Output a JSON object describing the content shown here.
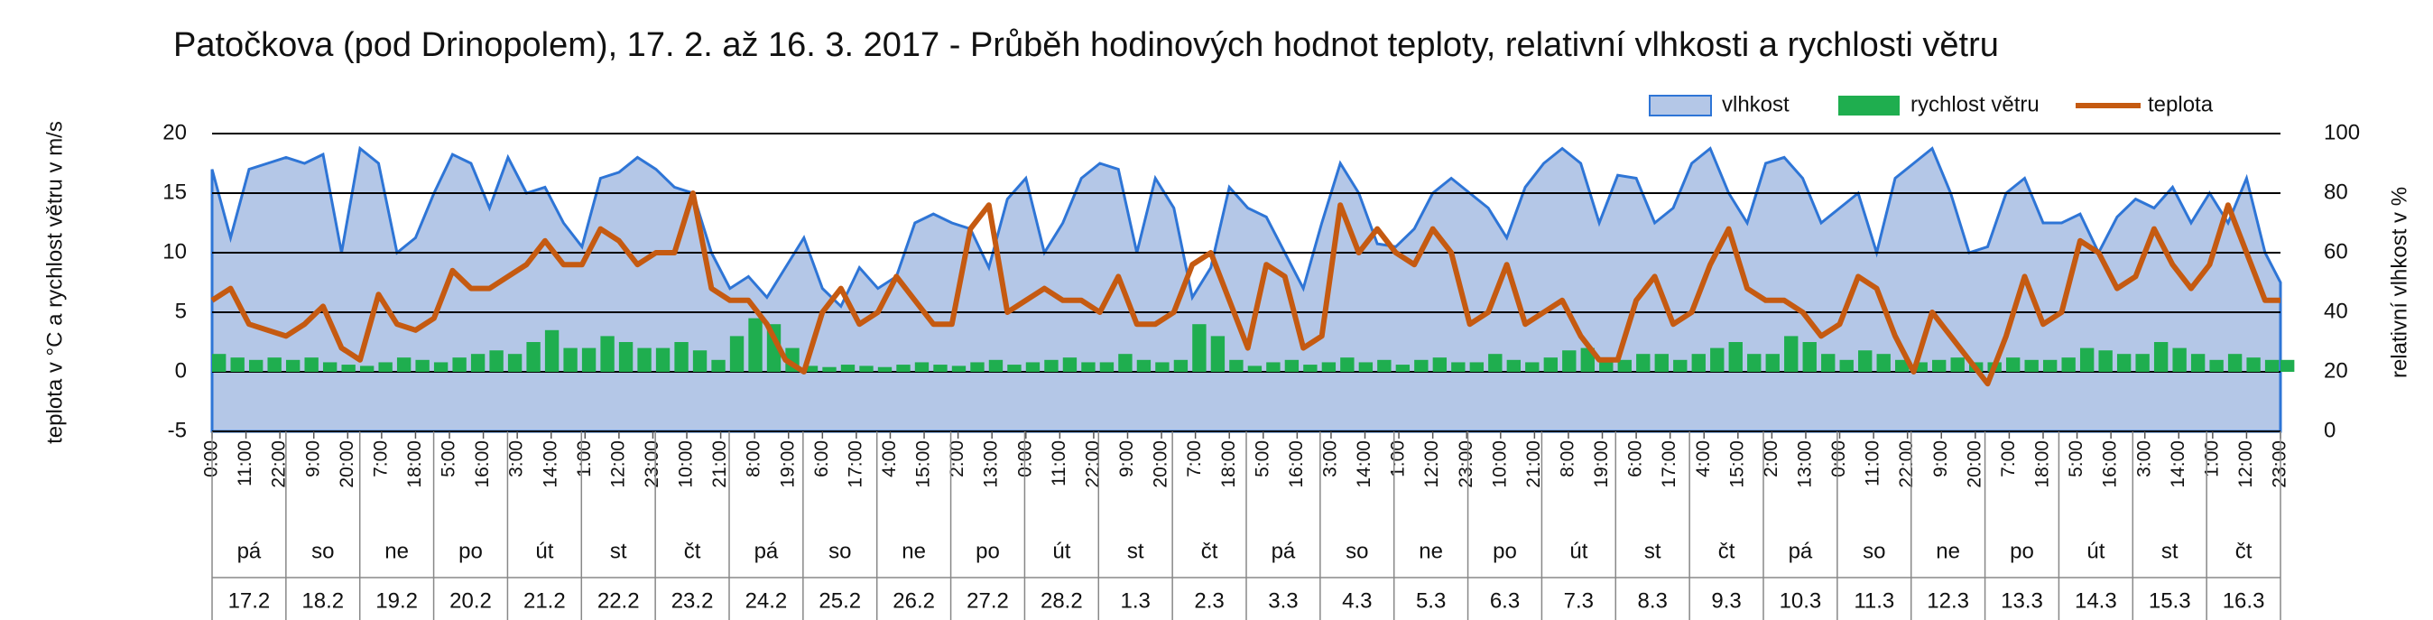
{
  "chart_data": {
    "type": "combo",
    "title": "Patočkova (pod Drinopolem), 17. 2. až 16. 3. 2017 - Průběh hodinových hodnot teploty, relativní vlhkosti a rychlosti větru",
    "ylabel": "teplota v °C a rychlost větru v m/s",
    "y2label": "relativní vlhkost v %",
    "xlim": [
      0,
      671
    ],
    "xticks": [
      {
        "value": 0,
        "label": "0:00"
      },
      {
        "value": 11,
        "label": "11:00"
      },
      {
        "value": 22,
        "label": "22:00"
      },
      {
        "value": 33,
        "label": "9:00"
      },
      {
        "value": 44,
        "label": "20:00"
      },
      {
        "value": 55,
        "label": "7:00"
      },
      {
        "value": 66,
        "label": "18:00"
      },
      {
        "value": 77,
        "label": "5:00"
      },
      {
        "value": 88,
        "label": "16:00"
      },
      {
        "value": 99,
        "label": "3:00"
      },
      {
        "value": 110,
        "label": "14:00"
      },
      {
        "value": 121,
        "label": "1:00"
      },
      {
        "value": 132,
        "label": "12:00"
      },
      {
        "value": 143,
        "label": "23:00"
      },
      {
        "value": 154,
        "label": "10:00"
      },
      {
        "value": 165,
        "label": "21:00"
      },
      {
        "value": 176,
        "label": "8:00"
      },
      {
        "value": 187,
        "label": "19:00"
      },
      {
        "value": 198,
        "label": "6:00"
      },
      {
        "value": 209,
        "label": "17:00"
      },
      {
        "value": 220,
        "label": "4:00"
      },
      {
        "value": 231,
        "label": "15:00"
      },
      {
        "value": 242,
        "label": "2:00"
      },
      {
        "value": 253,
        "label": "13:00"
      },
      {
        "value": 264,
        "label": "0:00"
      },
      {
        "value": 275,
        "label": "11:00"
      },
      {
        "value": 286,
        "label": "22:00"
      },
      {
        "value": 297,
        "label": "9:00"
      },
      {
        "value": 308,
        "label": "20:00"
      },
      {
        "value": 319,
        "label": "7:00"
      },
      {
        "value": 330,
        "label": "18:00"
      },
      {
        "value": 341,
        "label": "5:00"
      },
      {
        "value": 352,
        "label": "16:00"
      },
      {
        "value": 363,
        "label": "3:00"
      },
      {
        "value": 374,
        "label": "14:00"
      },
      {
        "value": 385,
        "label": "1:00"
      },
      {
        "value": 396,
        "label": "12:00"
      },
      {
        "value": 407,
        "label": "23:00"
      },
      {
        "value": 418,
        "label": "10:00"
      },
      {
        "value": 429,
        "label": "21:00"
      },
      {
        "value": 440,
        "label": "8:00"
      },
      {
        "value": 451,
        "label": "19:00"
      },
      {
        "value": 462,
        "label": "6:00"
      },
      {
        "value": 473,
        "label": "17:00"
      },
      {
        "value": 484,
        "label": "4:00"
      },
      {
        "value": 495,
        "label": "15:00"
      },
      {
        "value": 506,
        "label": "2:00"
      },
      {
        "value": 517,
        "label": "13:00"
      },
      {
        "value": 528,
        "label": "0:00"
      },
      {
        "value": 539,
        "label": "11:00"
      },
      {
        "value": 550,
        "label": "22:00"
      },
      {
        "value": 561,
        "label": "9:00"
      },
      {
        "value": 572,
        "label": "20:00"
      },
      {
        "value": 583,
        "label": "7:00"
      },
      {
        "value": 594,
        "label": "18:00"
      },
      {
        "value": 605,
        "label": "5:00"
      },
      {
        "value": 616,
        "label": "16:00"
      },
      {
        "value": 627,
        "label": "3:00"
      },
      {
        "value": 638,
        "label": "14:00"
      },
      {
        "value": 649,
        "label": "1:00"
      },
      {
        "value": 660,
        "label": "12:00"
      },
      {
        "value": 671,
        "label": "23:00"
      }
    ],
    "days": [
      {
        "weekday": "pá",
        "date": "17.2"
      },
      {
        "weekday": "so",
        "date": "18.2"
      },
      {
        "weekday": "ne",
        "date": "19.2"
      },
      {
        "weekday": "po",
        "date": "20.2"
      },
      {
        "weekday": "út",
        "date": "21.2"
      },
      {
        "weekday": "st",
        "date": "22.2"
      },
      {
        "weekday": "čt",
        "date": "23.2"
      },
      {
        "weekday": "pá",
        "date": "24.2"
      },
      {
        "weekday": "so",
        "date": "25.2"
      },
      {
        "weekday": "ne",
        "date": "26.2"
      },
      {
        "weekday": "po",
        "date": "27.2"
      },
      {
        "weekday": "út",
        "date": "28.2"
      },
      {
        "weekday": "st",
        "date": "1.3"
      },
      {
        "weekday": "čt",
        "date": "2.3"
      },
      {
        "weekday": "pá",
        "date": "3.3"
      },
      {
        "weekday": "so",
        "date": "4.3"
      },
      {
        "weekday": "ne",
        "date": "5.3"
      },
      {
        "weekday": "po",
        "date": "6.3"
      },
      {
        "weekday": "út",
        "date": "7.3"
      },
      {
        "weekday": "st",
        "date": "8.3"
      },
      {
        "weekday": "čt",
        "date": "9.3"
      },
      {
        "weekday": "pá",
        "date": "10.3"
      },
      {
        "weekday": "so",
        "date": "11.3"
      },
      {
        "weekday": "ne",
        "date": "12.3"
      },
      {
        "weekday": "po",
        "date": "13.3"
      },
      {
        "weekday": "út",
        "date": "14.3"
      },
      {
        "weekday": "st",
        "date": "15.3"
      },
      {
        "weekday": "čt",
        "date": "16.3"
      }
    ],
    "ylim": [
      -5,
      20
    ],
    "yticks": [
      -5,
      0,
      5,
      10,
      15,
      20
    ],
    "y2lim": [
      0,
      100
    ],
    "y2ticks": [
      0,
      20,
      40,
      60,
      80,
      100
    ],
    "grid": true,
    "legend": "top-right",
    "x": [
      0,
      6,
      12,
      18,
      24,
      30,
      36,
      42,
      48,
      54,
      60,
      66,
      72,
      78,
      84,
      90,
      96,
      102,
      108,
      114,
      120,
      126,
      132,
      138,
      144,
      150,
      156,
      162,
      168,
      174,
      180,
      186,
      192,
      198,
      204,
      210,
      216,
      222,
      228,
      234,
      240,
      246,
      252,
      258,
      264,
      270,
      276,
      282,
      288,
      294,
      300,
      306,
      312,
      318,
      324,
      330,
      336,
      342,
      348,
      354,
      360,
      366,
      372,
      378,
      384,
      390,
      396,
      402,
      408,
      414,
      420,
      426,
      432,
      438,
      444,
      450,
      456,
      462,
      468,
      474,
      480,
      486,
      492,
      498,
      504,
      510,
      516,
      522,
      528,
      534,
      540,
      546,
      552,
      558,
      564,
      570,
      576,
      582,
      588,
      594,
      600,
      606,
      612,
      618,
      624,
      630,
      636,
      642,
      648,
      654,
      660,
      666,
      671
    ],
    "series": [
      {
        "name": "vlhkost",
        "type": "area",
        "axis": "y2",
        "color": "#b4c7e7",
        "edge": "#2e75d6",
        "values": [
          88,
          65,
          88,
          90,
          92,
          90,
          93,
          60,
          95,
          90,
          60,
          65,
          80,
          93,
          90,
          75,
          92,
          80,
          82,
          70,
          62,
          85,
          87,
          92,
          88,
          82,
          80,
          60,
          48,
          52,
          45,
          55,
          65,
          48,
          42,
          55,
          48,
          52,
          70,
          73,
          70,
          68,
          55,
          78,
          85,
          60,
          70,
          85,
          90,
          88,
          60,
          85,
          75,
          45,
          55,
          82,
          75,
          72,
          60,
          48,
          70,
          90,
          80,
          63,
          62,
          68,
          80,
          85,
          80,
          75,
          65,
          82,
          90,
          95,
          90,
          70,
          86,
          85,
          70,
          75,
          90,
          95,
          80,
          70,
          90,
          92,
          85,
          70,
          75,
          80,
          60,
          85,
          90,
          95,
          80,
          60,
          62,
          80,
          85,
          70,
          70,
          73,
          60,
          72,
          78,
          75,
          82,
          70,
          80,
          70,
          85,
          60,
          50
        ]
      },
      {
        "name": "rychlost větru",
        "type": "bar",
        "color": "#1fae4f",
        "values": [
          1.5,
          1.2,
          1,
          1.2,
          1,
          1.2,
          0.8,
          0.6,
          0.5,
          0.8,
          1.2,
          1,
          0.8,
          1.2,
          1.5,
          1.8,
          1.5,
          2.5,
          3.5,
          2,
          2,
          3,
          2.5,
          2,
          2,
          2.5,
          1.8,
          1,
          3,
          4.5,
          4,
          2,
          0.5,
          0.4,
          0.6,
          0.5,
          0.4,
          0.6,
          0.8,
          0.6,
          0.5,
          0.8,
          1,
          0.6,
          0.8,
          1,
          1.2,
          0.8,
          0.8,
          1.5,
          1,
          0.8,
          1,
          4,
          3,
          1,
          0.5,
          0.8,
          1,
          0.6,
          0.8,
          1.2,
          0.8,
          1,
          0.6,
          1,
          1.2,
          0.8,
          0.8,
          1.5,
          1,
          0.8,
          1.2,
          1.8,
          2,
          1.2,
          1,
          1.5,
          1.5,
          1,
          1.5,
          2,
          2.5,
          1.5,
          1.5,
          3,
          2.5,
          1.5,
          1,
          1.8,
          1.5,
          1,
          0.8,
          1,
          1.2,
          0.8,
          0.8,
          1.2,
          1,
          1,
          1.2,
          2,
          1.8,
          1.5,
          1.5,
          2.5,
          2,
          1.5,
          1,
          1.5,
          1.2,
          1,
          1
        ]
      },
      {
        "name": "teplota",
        "type": "line",
        "color": "#c55a11",
        "values": [
          6,
          7,
          4,
          3.5,
          3,
          4,
          5.5,
          2,
          1,
          6.5,
          4,
          3.5,
          4.5,
          8.5,
          7,
          7,
          8,
          9,
          11,
          9,
          9,
          12,
          11,
          9,
          10,
          10,
          15,
          7,
          6,
          6,
          4,
          1,
          0,
          5,
          7,
          4,
          5,
          8,
          6,
          4,
          4,
          12,
          14,
          5,
          6,
          7,
          6,
          6,
          5,
          8,
          4,
          4,
          5,
          9,
          10,
          6,
          2,
          9,
          8,
          2,
          3,
          14,
          10,
          12,
          10,
          9,
          12,
          10,
          4,
          5,
          9,
          4,
          5,
          6,
          3,
          1,
          1,
          6,
          8,
          4,
          5,
          9,
          12,
          7,
          6,
          6,
          5,
          3,
          4,
          8,
          7,
          3,
          0,
          5,
          3,
          1,
          -1,
          3,
          8,
          4,
          5,
          11,
          10,
          7,
          8,
          12,
          9,
          7,
          9,
          14,
          10,
          6,
          6
        ]
      }
    ]
  }
}
